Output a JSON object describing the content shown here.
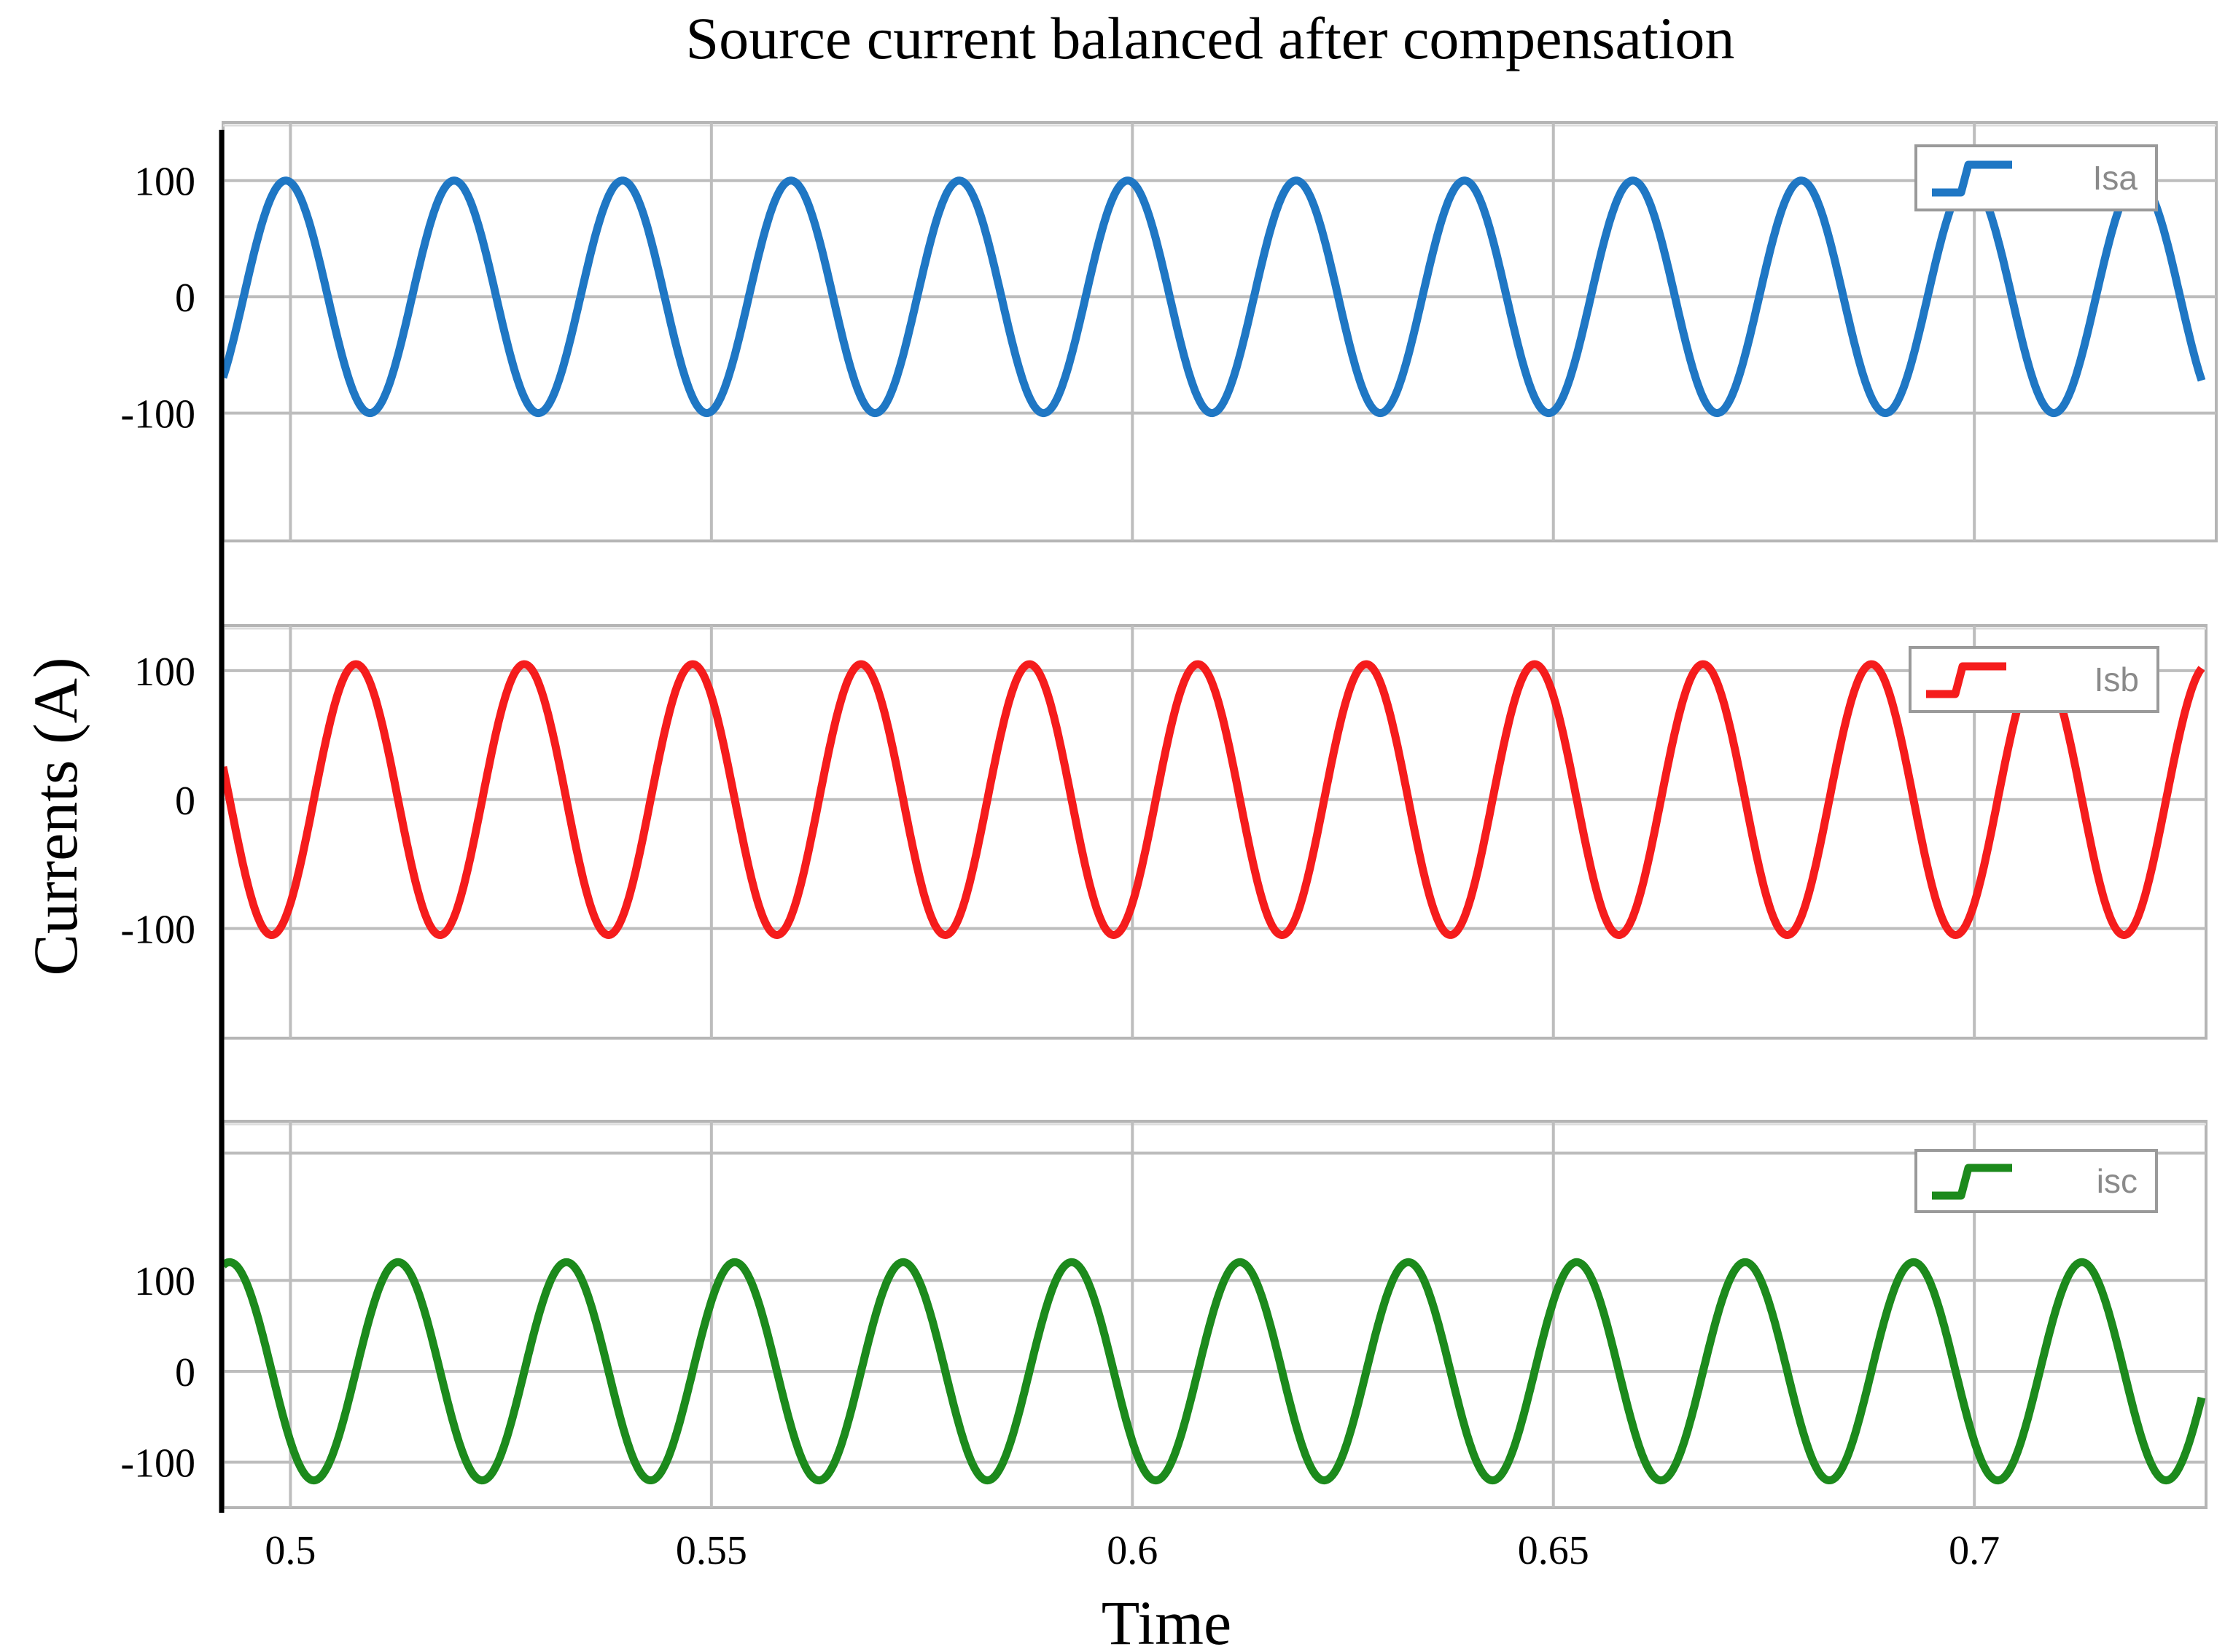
{
  "chart_data": {
    "type": "line",
    "title": "Source current balanced after compensation",
    "xlabel": "Time",
    "ylabel": "Currents (A)",
    "xlim": [
      0.492,
      0.727
    ],
    "x_ticks": [
      0.5,
      0.55,
      0.6,
      0.65,
      0.7
    ],
    "x_tick_labels": [
      "0.5",
      "0.55",
      "0.6",
      "0.65",
      "0.7"
    ],
    "grid": true,
    "frequency_hz": 50,
    "panels": [
      {
        "series_name": "Isa",
        "legend": "Isa",
        "legend_position": "top-right",
        "color": "#1f77c4",
        "amplitude": 100,
        "phase_deg": 100,
        "ylim": [
          -210,
          150
        ],
        "y_ticks": [
          100,
          0,
          -100
        ],
        "y_tick_labels": [
          "100",
          "0",
          "-100"
        ],
        "grid_y": [
          100,
          0,
          -100
        ]
      },
      {
        "series_name": "Isb",
        "legend": "Isb",
        "legend_position": "top-right",
        "color": "#f51c1c",
        "amplitude": 105,
        "phase_deg": -50,
        "ylim": [
          -185,
          135
        ],
        "y_ticks": [
          100,
          0,
          -100
        ],
        "y_tick_labels": [
          "100",
          "0",
          "-100"
        ],
        "grid_y": [
          100,
          0,
          -100
        ]
      },
      {
        "series_name": "isc",
        "legend": "isc",
        "legend_position": "top-right",
        "color": "#1c8a1c",
        "amplitude": 120,
        "phase_deg": -140,
        "ylim": [
          -150,
          275
        ],
        "y_ticks": [
          100,
          0,
          -100
        ],
        "y_tick_labels": [
          "100",
          "0",
          "-100"
        ],
        "grid_y": [
          240,
          100,
          0,
          -100
        ]
      }
    ]
  }
}
